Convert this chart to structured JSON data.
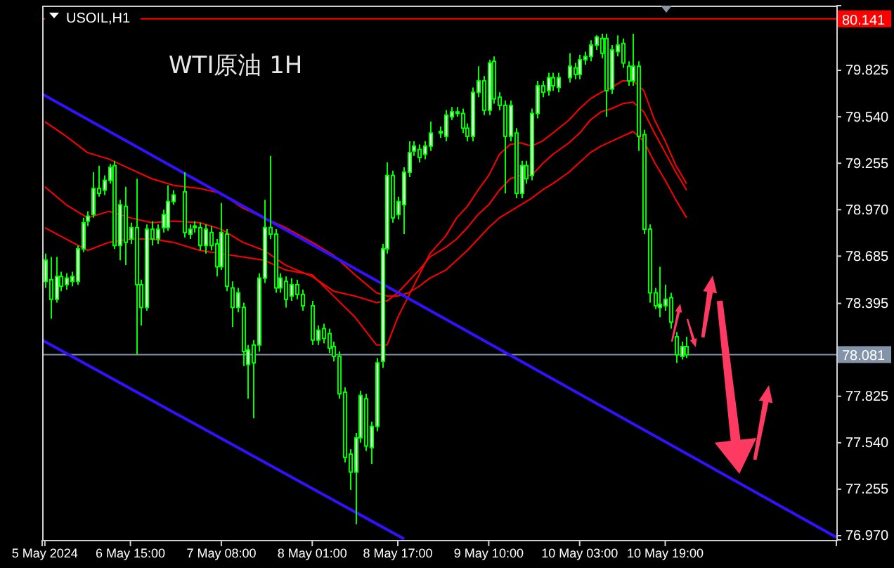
{
  "chart_data": {
    "type": "candlestick",
    "title": "WTI原油 1H",
    "subtitle": "USOIL,H1",
    "color": "#00ff00",
    "x": [
      "2024-05-05T23:00",
      "2024-05-06T00:00",
      "2024-05-06T01:00",
      "2024-05-06T02:00",
      "2024-05-06T03:00",
      "2024-05-06T04:00",
      "2024-05-06T05:00",
      "2024-05-06T06:00",
      "2024-05-06T07:00",
      "2024-05-06T08:00",
      "2024-05-06T09:00",
      "2024-05-06T10:00",
      "2024-05-06T11:00",
      "2024-05-06T12:00",
      "2024-05-06T13:00",
      "2024-05-06T14:00",
      "2024-05-06T15:00",
      "2024-05-06T16:00",
      "2024-05-06T17:00",
      "2024-05-06T18:00",
      "2024-05-06T19:00",
      "2024-05-06T20:00",
      "2024-05-06T21:00",
      "2024-05-06T22:00",
      "2024-05-06T23:00",
      "2024-05-07T01:00",
      "2024-05-07T02:00",
      "2024-05-07T03:00",
      "2024-05-07T04:00",
      "2024-05-07T05:00",
      "2024-05-07T06:00",
      "2024-05-07T07:00",
      "2024-05-07T08:00",
      "2024-05-07T09:00",
      "2024-05-07T10:00",
      "2024-05-07T11:00",
      "2024-05-07T12:00",
      "2024-05-07T13:00",
      "2024-05-07T14:00",
      "2024-05-07T15:00",
      "2024-05-07T16:00",
      "2024-05-07T17:00",
      "2024-05-07T18:00",
      "2024-05-07T19:00",
      "2024-05-07T20:00",
      "2024-05-07T21:00",
      "2024-05-07T22:00",
      "2024-05-07T23:00",
      "2024-05-08T01:00",
      "2024-05-08T02:00",
      "2024-05-08T03:00",
      "2024-05-08T04:00",
      "2024-05-08T05:00",
      "2024-05-08T06:00",
      "2024-05-08T07:00",
      "2024-05-08T08:00",
      "2024-05-08T09:00",
      "2024-05-08T10:00",
      "2024-05-08T11:00",
      "2024-05-08T12:00",
      "2024-05-08T13:00",
      "2024-05-08T14:00",
      "2024-05-08T15:00",
      "2024-05-08T16:00",
      "2024-05-08T17:00",
      "2024-05-08T18:00",
      "2024-05-08T19:00",
      "2024-05-08T20:00",
      "2024-05-08T21:00",
      "2024-05-08T22:00",
      "2024-05-08T23:00",
      "2024-05-09T01:00",
      "2024-05-09T02:00",
      "2024-05-09T03:00",
      "2024-05-09T04:00",
      "2024-05-09T05:00",
      "2024-05-09T06:00",
      "2024-05-09T07:00",
      "2024-05-09T08:00",
      "2024-05-09T09:00",
      "2024-05-09T10:00",
      "2024-05-09T11:00",
      "2024-05-09T12:00",
      "2024-05-09T13:00",
      "2024-05-09T14:00",
      "2024-05-09T15:00",
      "2024-05-09T16:00",
      "2024-05-09T17:00",
      "2024-05-09T18:00",
      "2024-05-09T19:00",
      "2024-05-09T20:00",
      "2024-05-09T21:00",
      "2024-05-09T22:00",
      "2024-05-09T23:00",
      "2024-05-10T01:00",
      "2024-05-10T02:00",
      "2024-05-10T03:00",
      "2024-05-10T04:00",
      "2024-05-10T05:00",
      "2024-05-10T06:00",
      "2024-05-10T07:00",
      "2024-05-10T08:00",
      "2024-05-10T09:00",
      "2024-05-10T10:00",
      "2024-05-10T11:00",
      "2024-05-10T12:00",
      "2024-05-10T13:00",
      "2024-05-10T14:00",
      "2024-05-10T15:00",
      "2024-05-10T16:00",
      "2024-05-10T17:00",
      "2024-05-10T18:00",
      "2024-05-10T19:00",
      "2024-05-10T20:00",
      "2024-05-10T21:00",
      "2024-05-10T22:00",
      "2024-05-10T23:00"
    ],
    "ohlc": [
      [
        78.53,
        78.7,
        78.49,
        78.66
      ],
      [
        78.54,
        78.68,
        78.3,
        78.42
      ],
      [
        78.42,
        78.68,
        78.4,
        78.56
      ],
      [
        78.56,
        78.59,
        78.47,
        78.5
      ],
      [
        78.51,
        78.58,
        78.48,
        78.55
      ],
      [
        78.53,
        78.59,
        78.5,
        78.56
      ],
      [
        78.53,
        78.75,
        78.51,
        78.73
      ],
      [
        78.73,
        78.92,
        78.71,
        78.89
      ],
      [
        78.9,
        78.96,
        78.87,
        78.93
      ],
      [
        78.94,
        79.2,
        78.92,
        79.1
      ],
      [
        79.1,
        79.24,
        79.05,
        79.07
      ],
      [
        79.09,
        79.18,
        79.06,
        79.15
      ],
      [
        79.15,
        79.25,
        79.13,
        79.23
      ],
      [
        79.24,
        79.27,
        78.73,
        78.75
      ],
      [
        78.75,
        79.03,
        78.66,
        79.0
      ],
      [
        78.99,
        79.11,
        78.63,
        78.77
      ],
      [
        78.79,
        78.89,
        78.76,
        78.86
      ],
      [
        78.86,
        79.16,
        78.08,
        78.51
      ],
      [
        78.51,
        78.54,
        78.26,
        78.37
      ],
      [
        78.37,
        78.88,
        78.35,
        78.85
      ],
      [
        78.85,
        78.9,
        78.75,
        78.79
      ],
      [
        78.79,
        78.88,
        78.76,
        78.85
      ],
      [
        78.86,
        78.97,
        78.83,
        78.94
      ],
      [
        78.86,
        79.12,
        78.84,
        79.02
      ],
      [
        79.02,
        79.09,
        79.0,
        79.06
      ],
      [
        79.08,
        79.2,
        78.8,
        78.83
      ],
      [
        78.82,
        78.88,
        78.79,
        78.85
      ],
      [
        78.86,
        78.9,
        78.83,
        78.87
      ],
      [
        78.86,
        78.89,
        78.72,
        78.75
      ],
      [
        78.75,
        78.88,
        78.7,
        78.85
      ],
      [
        78.83,
        78.87,
        78.72,
        78.75
      ],
      [
        78.76,
        78.79,
        78.56,
        78.62
      ],
      [
        78.62,
        79.01,
        78.6,
        78.83
      ],
      [
        78.82,
        78.85,
        78.47,
        78.5
      ],
      [
        78.49,
        78.53,
        78.25,
        78.37
      ],
      [
        78.37,
        78.49,
        78.34,
        78.46
      ],
      [
        78.37,
        78.4,
        78.01,
        78.1
      ],
      [
        78.02,
        78.14,
        77.81,
        78.11
      ],
      [
        78.14,
        78.17,
        77.69,
        78.03
      ],
      [
        78.14,
        78.58,
        78.1,
        78.55
      ],
      [
        78.55,
        79.03,
        78.52,
        78.86
      ],
      [
        78.86,
        79.3,
        78.79,
        78.82
      ],
      [
        78.82,
        78.85,
        78.46,
        78.49
      ],
      [
        78.49,
        78.58,
        78.46,
        78.55
      ],
      [
        78.53,
        78.56,
        78.37,
        78.42
      ],
      [
        78.44,
        78.55,
        78.41,
        78.51
      ],
      [
        78.51,
        78.54,
        78.42,
        78.45
      ],
      [
        78.45,
        78.48,
        78.35,
        78.38
      ],
      [
        78.38,
        78.41,
        78.14,
        78.17
      ],
      [
        78.17,
        78.26,
        78.14,
        78.23
      ],
      [
        78.24,
        78.27,
        78.15,
        78.18
      ],
      [
        78.21,
        78.24,
        78.09,
        78.12
      ],
      [
        78.13,
        78.16,
        78.04,
        78.07
      ],
      [
        78.07,
        78.1,
        77.81,
        77.84
      ],
      [
        77.85,
        77.88,
        77.42,
        77.45
      ],
      [
        77.47,
        77.5,
        77.25,
        77.36
      ],
      [
        77.36,
        77.6,
        77.04,
        77.57
      ],
      [
        77.57,
        77.86,
        77.54,
        77.83
      ],
      [
        77.81,
        77.84,
        77.49,
        77.52
      ],
      [
        77.51,
        77.67,
        77.41,
        77.64
      ],
      [
        77.64,
        78.06,
        77.61,
        78.03
      ],
      [
        78.04,
        78.76,
        78.0,
        78.73
      ],
      [
        78.73,
        79.26,
        78.7,
        79.18
      ],
      [
        79.18,
        79.21,
        78.89,
        78.92
      ],
      [
        78.94,
        79.05,
        78.91,
        79.02
      ],
      [
        79.0,
        79.23,
        78.82,
        79.2
      ],
      [
        79.2,
        79.39,
        79.17,
        79.32
      ],
      [
        79.33,
        79.39,
        79.3,
        79.36
      ],
      [
        79.34,
        79.37,
        79.26,
        79.29
      ],
      [
        79.31,
        79.39,
        79.28,
        79.36
      ],
      [
        79.36,
        79.51,
        79.33,
        79.44
      ],
      [
        79.44,
        79.48,
        79.41,
        79.45
      ],
      [
        79.42,
        79.58,
        79.39,
        79.55
      ],
      [
        79.54,
        79.6,
        79.52,
        79.57
      ],
      [
        79.56,
        79.6,
        79.54,
        79.57
      ],
      [
        79.56,
        79.59,
        79.44,
        79.47
      ],
      [
        79.47,
        79.5,
        79.39,
        79.42
      ],
      [
        79.42,
        79.72,
        79.39,
        79.69
      ],
      [
        79.69,
        79.85,
        79.66,
        79.76
      ],
      [
        79.76,
        79.79,
        79.55,
        79.58
      ],
      [
        79.58,
        79.89,
        79.55,
        79.87
      ],
      [
        79.88,
        79.91,
        79.62,
        79.65
      ],
      [
        79.66,
        79.69,
        79.58,
        79.61
      ],
      [
        79.61,
        79.64,
        79.07,
        79.42
      ],
      [
        79.42,
        79.64,
        79.39,
        79.61
      ],
      [
        79.44,
        79.47,
        79.04,
        79.07
      ],
      [
        79.07,
        79.27,
        79.04,
        79.24
      ],
      [
        79.24,
        79.27,
        79.13,
        79.16
      ],
      [
        79.18,
        79.59,
        79.15,
        79.56
      ],
      [
        79.56,
        79.76,
        79.53,
        79.73
      ],
      [
        79.73,
        79.76,
        79.66,
        79.69
      ],
      [
        79.7,
        79.81,
        79.67,
        79.78
      ],
      [
        79.78,
        79.81,
        79.7,
        79.73
      ],
      [
        79.72,
        79.81,
        79.69,
        79.78
      ],
      [
        79.78,
        79.93,
        79.75,
        79.85
      ],
      [
        79.84,
        79.87,
        79.77,
        79.8
      ],
      [
        79.8,
        79.92,
        79.77,
        79.89
      ],
      [
        79.89,
        79.94,
        79.86,
        79.91
      ],
      [
        79.91,
        80.01,
        79.88,
        79.98
      ],
      [
        79.98,
        80.04,
        79.95,
        80.03
      ],
      [
        80.02,
        80.05,
        79.9,
        79.93
      ],
      [
        80.02,
        80.05,
        79.54,
        79.7
      ],
      [
        79.71,
        79.98,
        79.68,
        79.95
      ],
      [
        79.94,
        80.04,
        79.91,
        79.98
      ],
      [
        79.99,
        80.02,
        79.84,
        79.87
      ],
      [
        79.85,
        79.88,
        79.73,
        79.76
      ],
      [
        79.76,
        80.05,
        79.73,
        79.85
      ],
      [
        79.85,
        79.88,
        79.33,
        79.42
      ],
      [
        79.43,
        79.46,
        78.82,
        78.85
      ],
      [
        78.85,
        78.88,
        78.4,
        78.46
      ],
      [
        78.46,
        78.49,
        78.36,
        78.38
      ],
      [
        78.37,
        78.62,
        78.31,
        78.39
      ],
      [
        78.38,
        78.51,
        78.35,
        78.42
      ],
      [
        78.43,
        78.46,
        78.24,
        78.28
      ],
      [
        78.19,
        78.22,
        78.03,
        78.08
      ],
      [
        78.07,
        78.16,
        78.05,
        78.13
      ],
      [
        78.13,
        78.19,
        78.06,
        78.08
      ]
    ],
    "series": [
      {
        "type": "line",
        "color": "#ff0000",
        "x": [
          "2024-05-05T23:00",
          "2024-05-06T03:00",
          "2024-05-06T07:00",
          "2024-05-06T11:00",
          "2024-05-06T15:00",
          "2024-05-06T19:00",
          "2024-05-06T23:00",
          "2024-05-07T04:00",
          "2024-05-07T08:00",
          "2024-05-07T12:00",
          "2024-05-07T16:00",
          "2024-05-07T20:00",
          "2024-05-08T01:00",
          "2024-05-08T05:00",
          "2024-05-08T09:00",
          "2024-05-08T13:00",
          "2024-05-08T15:00",
          "2024-05-08T17:00",
          "2024-05-08T19:00",
          "2024-05-08T21:00",
          "2024-05-08T23:00",
          "2024-05-09T02:00",
          "2024-05-09T04:00",
          "2024-05-09T06:00",
          "2024-05-09T08:00",
          "2024-05-09T10:00",
          "2024-05-09T12:00",
          "2024-05-09T14:00",
          "2024-05-09T16:00",
          "2024-05-09T18:00",
          "2024-05-09T20:00",
          "2024-05-09T22:00",
          "2024-05-10T01:00",
          "2024-05-10T03:00",
          "2024-05-10T05:00",
          "2024-05-10T07:00",
          "2024-05-10T09:00",
          "2024-05-10T11:00",
          "2024-05-10T13:00",
          "2024-05-10T15:00",
          "2024-05-10T17:00",
          "2024-05-10T19:00",
          "2024-05-10T21:00",
          "2024-05-10T23:00"
        ],
        "values": [
          79.51,
          79.42,
          79.32,
          79.28,
          79.22,
          79.16,
          79.12,
          79.1,
          79.07,
          78.98,
          78.92,
          78.86,
          78.77,
          78.69,
          78.57,
          78.46,
          78.44,
          78.44,
          78.46,
          78.5,
          78.55,
          78.6,
          78.66,
          78.72,
          78.79,
          78.86,
          78.92,
          78.96,
          79.0,
          79.04,
          79.09,
          79.13,
          79.2,
          79.26,
          79.32,
          79.36,
          79.39,
          79.42,
          79.45,
          79.39,
          79.26,
          79.15,
          79.03,
          78.92
        ]
      },
      {
        "type": "line",
        "color": "#ff0000",
        "x": [
          "2024-05-05T23:00",
          "2024-05-06T03:00",
          "2024-05-06T07:00",
          "2024-05-06T11:00",
          "2024-05-06T15:00",
          "2024-05-06T19:00",
          "2024-05-06T23:00",
          "2024-05-07T04:00",
          "2024-05-07T08:00",
          "2024-05-07T12:00",
          "2024-05-07T16:00",
          "2024-05-07T20:00",
          "2024-05-08T01:00",
          "2024-05-08T05:00",
          "2024-05-08T09:00",
          "2024-05-08T13:00",
          "2024-05-08T15:00",
          "2024-05-08T17:00",
          "2024-05-08T19:00",
          "2024-05-08T21:00",
          "2024-05-08T23:00",
          "2024-05-09T02:00",
          "2024-05-09T04:00",
          "2024-05-09T06:00",
          "2024-05-09T08:00",
          "2024-05-09T10:00",
          "2024-05-09T12:00",
          "2024-05-09T14:00",
          "2024-05-09T16:00",
          "2024-05-09T18:00",
          "2024-05-09T20:00",
          "2024-05-09T22:00",
          "2024-05-10T01:00",
          "2024-05-10T03:00",
          "2024-05-10T05:00",
          "2024-05-10T07:00",
          "2024-05-10T09:00",
          "2024-05-10T11:00",
          "2024-05-10T13:00",
          "2024-05-10T15:00",
          "2024-05-10T17:00",
          "2024-05-10T19:00",
          "2024-05-10T21:00",
          "2024-05-10T23:00"
        ],
        "values": [
          79.11,
          79.0,
          78.92,
          78.96,
          78.92,
          78.89,
          78.9,
          78.89,
          78.85,
          78.77,
          78.72,
          78.63,
          78.56,
          78.47,
          78.44,
          78.4,
          78.41,
          78.46,
          78.53,
          78.6,
          78.68,
          78.74,
          78.79,
          78.86,
          78.94,
          79.0,
          79.09,
          79.16,
          79.18,
          79.18,
          79.25,
          79.31,
          79.38,
          79.44,
          79.52,
          79.57,
          79.59,
          79.62,
          79.63,
          79.57,
          79.44,
          79.32,
          79.2,
          79.09
        ]
      },
      {
        "type": "line",
        "color": "#ff0000",
        "x": [
          "2024-05-05T23:00",
          "2024-05-06T03:00",
          "2024-05-06T07:00",
          "2024-05-06T11:00",
          "2024-05-06T15:00",
          "2024-05-06T19:00",
          "2024-05-06T23:00",
          "2024-05-07T04:00",
          "2024-05-07T08:00",
          "2024-05-07T12:00",
          "2024-05-07T16:00",
          "2024-05-07T20:00",
          "2024-05-08T01:00",
          "2024-05-08T05:00",
          "2024-05-08T09:00",
          "2024-05-08T13:00",
          "2024-05-08T15:00",
          "2024-05-08T17:00",
          "2024-05-08T19:00",
          "2024-05-08T21:00",
          "2024-05-08T23:00",
          "2024-05-09T02:00",
          "2024-05-09T04:00",
          "2024-05-09T06:00",
          "2024-05-09T08:00",
          "2024-05-09T10:00",
          "2024-05-09T12:00",
          "2024-05-09T14:00",
          "2024-05-09T16:00",
          "2024-05-09T18:00",
          "2024-05-09T20:00",
          "2024-05-09T22:00",
          "2024-05-10T01:00",
          "2024-05-10T03:00",
          "2024-05-10T05:00",
          "2024-05-10T07:00",
          "2024-05-10T09:00",
          "2024-05-10T11:00",
          "2024-05-10T13:00",
          "2024-05-10T15:00",
          "2024-05-10T17:00",
          "2024-05-10T19:00",
          "2024-05-10T21:00",
          "2024-05-10T23:00"
        ],
        "values": [
          78.86,
          78.79,
          78.72,
          78.77,
          78.79,
          78.79,
          78.77,
          78.72,
          78.7,
          78.68,
          78.66,
          78.6,
          78.57,
          78.44,
          78.31,
          78.14,
          78.14,
          78.31,
          78.44,
          78.57,
          78.7,
          78.81,
          78.92,
          78.99,
          79.09,
          79.18,
          79.31,
          79.37,
          79.38,
          79.36,
          79.39,
          79.44,
          79.52,
          79.59,
          79.65,
          79.69,
          79.72,
          79.76,
          79.76,
          79.7,
          79.52,
          79.39,
          79.24,
          79.13
        ]
      },
      {
        "type": "line",
        "color": "#3311ff",
        "x": [
          "2024-05-05T22:30",
          "2024-05-12T03:00"
        ],
        "values": [
          79.68,
          76.96
        ]
      },
      {
        "type": "line",
        "color": "#3311ff",
        "x": [
          "2024-05-05T22:30",
          "2024-05-08T18:10"
        ],
        "values": [
          78.17,
          76.95
        ]
      }
    ],
    "xlim": [
      "2024-05-05T22:30",
      "2024-05-12T03:00"
    ],
    "xticks": [
      {
        "value": "2024-05-05T23:00",
        "label": "5 May 2024"
      },
      {
        "value": "2024-05-06T15:00",
        "label": "6 May 15:00"
      },
      {
        "value": "2024-05-07T08:00",
        "label": "7 May 08:00"
      },
      {
        "value": "2024-05-08T01:00",
        "label": "8 May 01:00"
      },
      {
        "value": "2024-05-08T17:00",
        "label": "8 May 17:00"
      },
      {
        "value": "2024-05-09T10:00",
        "label": "9 May 10:00"
      },
      {
        "value": "2024-05-10T03:00",
        "label": "10 May 03:00"
      },
      {
        "value": "2024-05-10T19:00",
        "label": "10 May 19:00"
      }
    ],
    "ylim": [
      76.944,
      80.222
    ],
    "yticks": [
      {
        "value": 76.97,
        "label": "76.970"
      },
      {
        "value": 77.255,
        "label": "77.255"
      },
      {
        "value": 77.54,
        "label": "77.540"
      },
      {
        "value": 77.825,
        "label": "77.825"
      },
      {
        "value": 78.395,
        "label": "78.395"
      },
      {
        "value": 78.685,
        "label": "78.685"
      },
      {
        "value": 78.97,
        "label": "78.970"
      },
      {
        "value": 79.255,
        "label": "79.255"
      },
      {
        "value": 79.54,
        "label": "79.540"
      },
      {
        "value": 79.825,
        "label": "79.825"
      }
    ],
    "ref_lines": [
      {
        "axis": "y",
        "value": 80.141,
        "label": "80.141",
        "color": "#ff0000"
      },
      {
        "axis": "y",
        "value": 78.081,
        "label": "78.081",
        "color": "#8494a8"
      }
    ]
  }
}
